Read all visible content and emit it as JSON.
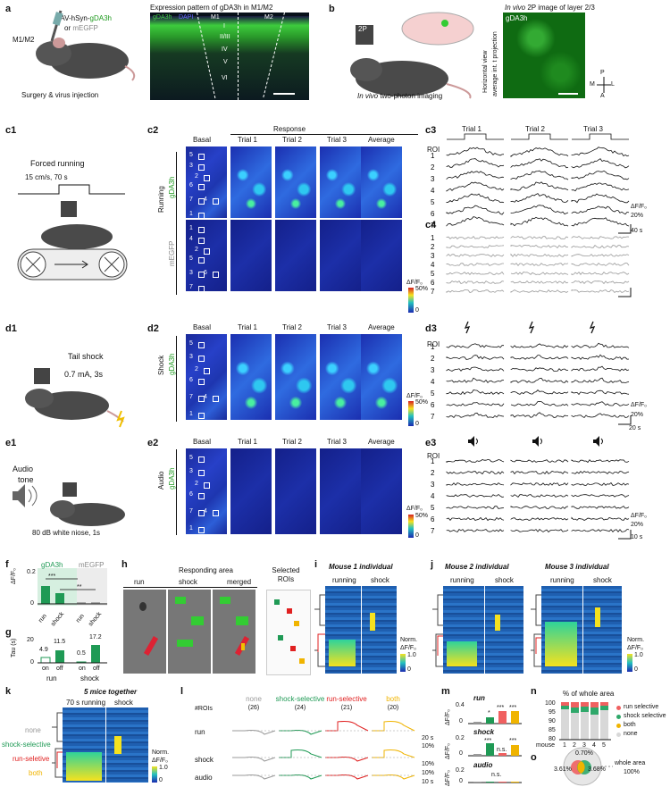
{
  "a": {
    "label": "a",
    "virus": "AAV-hSyn-",
    "virus_g": "gDA3h",
    "or": "or ",
    "megfp": "mEGFP",
    "region": "M1/M2",
    "caption": "Surgery & virus injection",
    "img_title": "Expression pattern of gDA3h in M1/M2",
    "img_leg_g": "gDA3h",
    "img_leg_d": "DAPI",
    "m1": "M1",
    "m2": "M2",
    "layers": [
      "I",
      "II/III",
      "IV",
      "V",
      "VI"
    ]
  },
  "b": {
    "label": "b",
    "caption_it": "In vivo",
    "caption": " two-photon imaging",
    "scope": "2P",
    "img_title_it": "In vivo",
    "img_title": " 2P image of layer 2/3",
    "img_label": "gDA3h",
    "side1": "Horizontal view",
    "side2": "average int. t projection",
    "compass": {
      "p": "P",
      "a": "A",
      "m": "M",
      "l": "L"
    }
  },
  "c1": {
    "label": "c1",
    "title": "Forced running",
    "param": "15 cm/s, 70 s"
  },
  "c2": {
    "label": "c2",
    "response": "Response",
    "cols": [
      "Basal",
      "Trial 1",
      "Trial 2",
      "Trial 3",
      "Average"
    ],
    "row_main": "Running",
    "row1": "gDA3h",
    "row2": "mEGFP",
    "rois1": [
      "5",
      "3",
      "2",
      "6",
      "7",
      "4",
      "1"
    ],
    "rois2": [
      "1",
      "4",
      "2",
      "5",
      "3",
      "6",
      "7"
    ],
    "cbar_label": "ΔF/F₀",
    "cbar_max": "50%",
    "cbar_min": "0"
  },
  "c3": {
    "label": "c3",
    "roi": "ROI",
    "trials": [
      "Trial 1",
      "Trial 2",
      "Trial 3"
    ],
    "rows": [
      "1",
      "2",
      "3",
      "4",
      "5",
      "6",
      "7"
    ],
    "scale_y": "ΔF/F₀",
    "scale_v": "20%",
    "scale_t": "40 s"
  },
  "c4": {
    "label": "c4",
    "rows": [
      "1",
      "2",
      "3",
      "4",
      "5",
      "6",
      "7"
    ]
  },
  "d1": {
    "label": "d1",
    "title": "Tail shock",
    "param": "0.7 mA, 3s"
  },
  "d2": {
    "label": "d2",
    "cols": [
      "Basal",
      "Trial 1",
      "Trial 2",
      "Trial 3",
      "Average"
    ],
    "row_main": "Shock",
    "row1": "gDA3h",
    "rois": [
      "5",
      "3",
      "2",
      "6",
      "7",
      "4",
      "1"
    ],
    "cbar_label": "ΔF/F₀",
    "cbar_max": "50%",
    "cbar_min": "0"
  },
  "d3": {
    "label": "d3",
    "roi": "ROI",
    "rows": [
      "1",
      "2",
      "3",
      "4",
      "5",
      "6",
      "7"
    ],
    "scale_y": "ΔF/F₀",
    "scale_v": "20%",
    "scale_t": "20 s"
  },
  "e1": {
    "label": "e1",
    "t1": "Audio",
    "t2": "tone",
    "param": "80 dB white niose, 1s"
  },
  "e2": {
    "label": "e2",
    "cols": [
      "Basal",
      "Trial 1",
      "Trial 2",
      "Trial 3",
      "Average"
    ],
    "row_main": "Audio",
    "row1": "gDA3h",
    "rois": [
      "5",
      "3",
      "2",
      "6",
      "7",
      "4",
      "1"
    ],
    "cbar_label": "ΔF/F₀",
    "cbar_max": "50%",
    "cbar_min": "0"
  },
  "e3": {
    "label": "e3",
    "roi": "ROI",
    "rows": [
      "1",
      "2",
      "3",
      "4",
      "5",
      "6",
      "7"
    ],
    "scale_y": "ΔF/F₀",
    "scale_v": "20%",
    "scale_t": "10 s"
  },
  "f": {
    "label": "f",
    "g_name": "gDA3h",
    "m_name": "mEGFP",
    "ylabel": "ΔF/F₀",
    "x": [
      "run",
      "shock",
      "run",
      "shock"
    ],
    "ticks": [
      "0",
      "0.2"
    ],
    "sig1": "***",
    "sig2": "**"
  },
  "g": {
    "label": "g",
    "ylabel": "Tau (s)",
    "ticks": [
      "0",
      "20"
    ],
    "vals": [
      "4.9",
      "11.5",
      "0.5",
      "17.2"
    ],
    "x": [
      "on",
      "off",
      "on",
      "off"
    ],
    "groups": [
      "run",
      "shock"
    ]
  },
  "h": {
    "label": "h",
    "title": "Responding area",
    "cols": [
      "run",
      "shock",
      "merged"
    ],
    "sel": "Selected ROIs"
  },
  "i": {
    "label": "i",
    "title": "Mouse 1 individual",
    "cols": [
      "running",
      "shock"
    ],
    "cbar_t1": "Norm.",
    "cbar_t2": "ΔF/F₀",
    "cbar_max": "1.0",
    "cbar_min": "0"
  },
  "j": {
    "label": "j",
    "title2": "Mouse 2 individual",
    "title3": "Mouse 3 individual",
    "cols": [
      "running",
      "shock"
    ],
    "cbar_t1": "Norm.",
    "cbar_t2": "ΔF/F₀",
    "cbar_max": "1.0",
    "cbar_min": "0"
  },
  "k": {
    "label": "k",
    "title": "5 mice together",
    "cols": [
      "70 s running",
      "shock"
    ],
    "groups": [
      "none",
      "shock-selective",
      "run-seletive",
      "both"
    ],
    "cbar_t1": "Norm.",
    "cbar_t2": "ΔF/F₀",
    "cbar_max": "1.0",
    "cbar_min": "0"
  },
  "l": {
    "label": "l",
    "rois_label": "#ROIs",
    "groups": [
      {
        "name": "none",
        "n": "(26)",
        "color": "#9a9a9a"
      },
      {
        "name": "shock-selective",
        "n": "(24)",
        "color": "#1f9a55"
      },
      {
        "name": "run-selective",
        "n": "(21)",
        "color": "#e02020"
      },
      {
        "name": "both",
        "n": "(20)",
        "color": "#f0b400"
      }
    ],
    "rows": [
      "run",
      "shock",
      "audio"
    ],
    "scale_t1": "20 s",
    "scale_v1": "10%",
    "scale_v2": "10%",
    "scale_t3": "10 s",
    "scale_v3": "10%"
  },
  "m": {
    "label": "m",
    "panels": [
      "run",
      "shock",
      "audio"
    ],
    "ylabel": "ΔF/F₀",
    "ticks1": [
      "0",
      "0.4"
    ],
    "ticks2": [
      "0",
      "0.2"
    ],
    "ticks3": [
      "0",
      "0.2"
    ],
    "sig_run": [
      "*",
      "***",
      "***"
    ],
    "sig_shock": [
      "***",
      "n.s.",
      "***"
    ],
    "sig_audio": "n.s."
  },
  "n": {
    "label": "n",
    "title": "% of whole area",
    "legend": [
      "run selective",
      "shock selective",
      "both",
      "none"
    ],
    "legend_colors": [
      "#f06060",
      "#2fa86a",
      "#f0b400",
      "#d8d8d8"
    ],
    "yticks": [
      "100",
      "95",
      "90",
      "85",
      "80"
    ],
    "xlabel": "mouse",
    "mice": [
      "1",
      "2",
      "3",
      "4",
      "5"
    ]
  },
  "o": {
    "label": "o",
    "whole": "whole area",
    "pct100": "100%",
    "v1": "0.70%",
    "v2": "3.61%",
    "v3": "3.68%"
  }
}
